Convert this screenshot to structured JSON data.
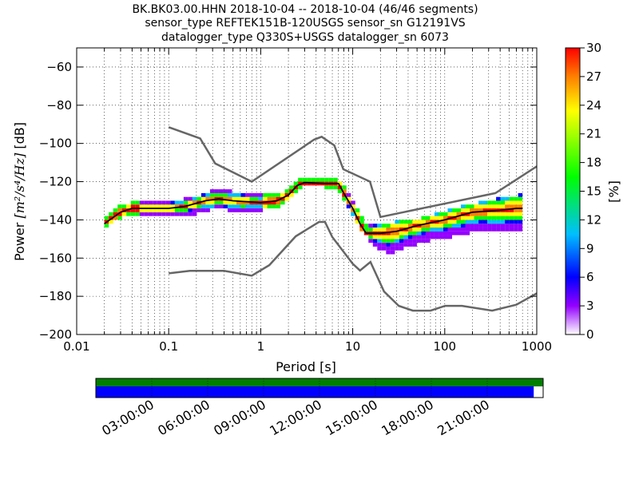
{
  "chart_data": {
    "type": "heatmap",
    "title_lines": [
      "BK.BK03.00.HHN   2018-10-04 -- 2018-10-04  (46/46 segments)",
      "sensor_type REFTEK151B-120USGS sensor_sn G12191VS",
      "datalogger_type Q330S+USGS datalogger_sn 6073"
    ],
    "xlabel": "Period [s]",
    "ylabel_main": "Power ",
    "ylabel_math": "[m²/s⁴/Hz]",
    "ylabel_unit": " [dB]",
    "x_scale": "log",
    "xlim": [
      0.01,
      1000
    ],
    "ylim": [
      -200,
      -50
    ],
    "x_ticks": [
      {
        "v": 0.01,
        "label": "0.01"
      },
      {
        "v": 0.1,
        "label": "0.1"
      },
      {
        "v": 1,
        "label": "1"
      },
      {
        "v": 10,
        "label": "10"
      },
      {
        "v": 100,
        "label": "100"
      },
      {
        "v": 1000,
        "label": "1000"
      }
    ],
    "y_ticks": [
      {
        "v": -60,
        "label": "−60"
      },
      {
        "v": -80,
        "label": "−80"
      },
      {
        "v": -100,
        "label": "−100"
      },
      {
        "v": -120,
        "label": "−120"
      },
      {
        "v": -140,
        "label": "−140"
      },
      {
        "v": -160,
        "label": "−160"
      },
      {
        "v": -180,
        "label": "−180"
      },
      {
        "v": -200,
        "label": "−200"
      }
    ],
    "grid": "dotted, vertical at period decade subdivisions",
    "colorbar": {
      "label": "[%]",
      "range": [
        0,
        30
      ],
      "ticks": [
        {
          "v": 0,
          "label": "0"
        },
        {
          "v": 3,
          "label": "3"
        },
        {
          "v": 6,
          "label": "6"
        },
        {
          "v": 9,
          "label": "9"
        },
        {
          "v": 12,
          "label": "12"
        },
        {
          "v": 15,
          "label": "15"
        },
        {
          "v": 18,
          "label": "18"
        },
        {
          "v": 21,
          "label": "21"
        },
        {
          "v": 24,
          "label": "24"
        },
        {
          "v": 27,
          "label": "27"
        },
        {
          "v": 30,
          "label": "30"
        }
      ],
      "colors": [
        "#ffffff",
        "#9400ff",
        "#0000ff",
        "#00bfff",
        "#00ff00",
        "#ffff00",
        "#ff7f00",
        "#ff0000"
      ]
    },
    "noise_models": {
      "color": "#666666",
      "high": [
        [
          0.1,
          -91.5
        ],
        [
          0.22,
          -97.4
        ],
        [
          0.32,
          -110.5
        ],
        [
          0.8,
          -120
        ],
        [
          3.8,
          -98
        ],
        [
          4.6,
          -96.5
        ],
        [
          6.3,
          -101
        ],
        [
          7.9,
          -113.5
        ],
        [
          15.4,
          -120
        ],
        [
          20,
          -138.5
        ],
        [
          354.8,
          -126
        ],
        [
          1000,
          -112
        ]
      ],
      "low": [
        [
          0.1,
          -168
        ],
        [
          0.17,
          -166.7
        ],
        [
          0.4,
          -166.7
        ],
        [
          0.8,
          -169.2
        ],
        [
          1.24,
          -163.7
        ],
        [
          2.4,
          -148.6
        ],
        [
          4.3,
          -141.1
        ],
        [
          5,
          -141.1
        ],
        [
          6,
          -149
        ],
        [
          10,
          -163
        ],
        [
          12,
          -166.5
        ],
        [
          15.6,
          -162
        ],
        [
          21.9,
          -177.5
        ],
        [
          31.6,
          -185
        ],
        [
          45,
          -187.5
        ],
        [
          70,
          -187.5
        ],
        [
          101,
          -185
        ],
        [
          154,
          -185
        ],
        [
          328,
          -187.5
        ],
        [
          600,
          -184.4
        ],
        [
          1000,
          -178.5
        ]
      ]
    },
    "median_curve": [
      [
        0.02,
        -142
      ],
      [
        0.03,
        -136
      ],
      [
        0.04,
        -134
      ],
      [
        0.1,
        -134
      ],
      [
        0.15,
        -133
      ],
      [
        0.25,
        -130
      ],
      [
        0.35,
        -129
      ],
      [
        0.5,
        -130
      ],
      [
        1,
        -131
      ],
      [
        1.5,
        -130
      ],
      [
        2,
        -127
      ],
      [
        2.5,
        -122
      ],
      [
        3,
        -120.5
      ],
      [
        5,
        -121
      ],
      [
        7,
        -121
      ],
      [
        8,
        -126
      ],
      [
        10,
        -134
      ],
      [
        12,
        -142
      ],
      [
        14,
        -147
      ],
      [
        20,
        -147
      ],
      [
        30,
        -146
      ],
      [
        50,
        -143
      ],
      [
        100,
        -140
      ],
      [
        200,
        -136
      ],
      [
        400,
        -135
      ],
      [
        600,
        -134
      ],
      [
        700,
        -134
      ]
    ],
    "min_curve": [
      [
        0.02,
        -144
      ],
      [
        0.03,
        -138
      ],
      [
        0.05,
        -137
      ],
      [
        0.1,
        -137
      ],
      [
        0.2,
        -136
      ],
      [
        0.35,
        -133
      ],
      [
        0.6,
        -135
      ],
      [
        1,
        -134
      ],
      [
        1.5,
        -133
      ],
      [
        2,
        -129
      ],
      [
        2.5,
        -124
      ],
      [
        3,
        -122
      ],
      [
        5,
        -122
      ],
      [
        7,
        -123
      ],
      [
        8,
        -128
      ],
      [
        10,
        -137
      ],
      [
        13,
        -146
      ],
      [
        16,
        -151
      ],
      [
        25,
        -158
      ],
      [
        40,
        -153
      ],
      [
        70,
        -150
      ],
      [
        120,
        -148
      ],
      [
        250,
        -145
      ],
      [
        600,
        -145
      ]
    ],
    "max_curve": [
      [
        0.02,
        -140
      ],
      [
        0.03,
        -133
      ],
      [
        0.05,
        -131
      ],
      [
        0.1,
        -131
      ],
      [
        0.2,
        -129
      ],
      [
        0.3,
        -125
      ],
      [
        0.5,
        -126
      ],
      [
        1,
        -128
      ],
      [
        1.5,
        -128
      ],
      [
        2,
        -124
      ],
      [
        2.5,
        -120
      ],
      [
        3,
        -119
      ],
      [
        5,
        -119
      ],
      [
        7,
        -119
      ],
      [
        8,
        -123
      ],
      [
        10,
        -130
      ],
      [
        12,
        -138
      ],
      [
        14,
        -143
      ],
      [
        20,
        -143
      ],
      [
        40,
        -141
      ],
      [
        70,
        -139
      ],
      [
        150,
        -134
      ],
      [
        300,
        -131
      ],
      [
        600,
        -128
      ]
    ],
    "timeline": {
      "labels": [
        "03:00:00",
        "06:00:00",
        "09:00:00",
        "12:00:00",
        "15:00:00",
        "18:00:00",
        "21:00:00"
      ],
      "top_bar_color": "#007f00",
      "bottom_bar_color": "#0000ff",
      "coverage_fraction": 0.979
    }
  }
}
